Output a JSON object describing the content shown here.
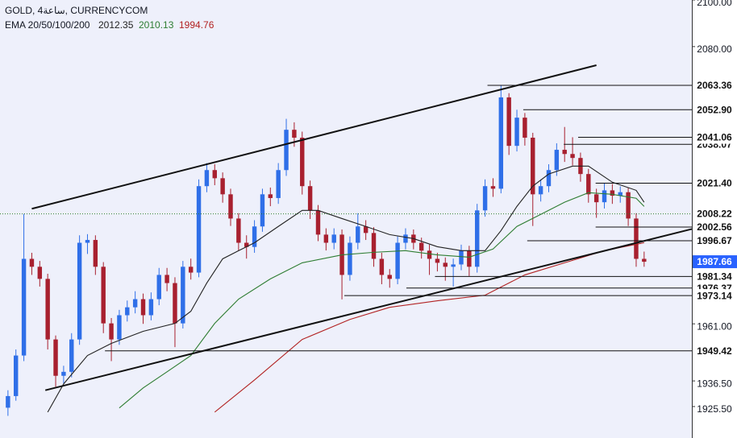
{
  "chart_data": {
    "type": "candlestick",
    "title": "GOLD, 4ساعة, CURRENCYCOM",
    "indicator": "EMA 20/50/100/200",
    "up_color": "#2f6fe8",
    "down_color": "#a8202f",
    "xlim": [
      -1,
      86
    ],
    "ylim": [
      1912,
      2100
    ],
    "yticks": [
      {
        "value": 2100,
        "label": "2100.00"
      },
      {
        "value": 2080,
        "label": "2080.00"
      },
      {
        "value": 1961,
        "label": "1961.00"
      },
      {
        "value": 1936.5,
        "label": "1936.50"
      },
      {
        "value": 1925.5,
        "label": "1925.50"
      }
    ],
    "open": [
      1925.0,
      1930.0,
      1947.4,
      1988.9,
      1985.5,
      1980.3,
      1954.3,
      1938.7,
      1940.4,
      1954.3,
      1995.8,
      1997.0,
      1985.5,
      1961.2,
      1954.3,
      1964.7,
      1968.1,
      1971.6,
      1964.7,
      1971.6,
      1982.0,
      1978.5,
      1961.2,
      1985.5,
      1983.0,
      2020.1,
      2027.0,
      2023.5,
      2016.6,
      2006.2,
      1995.8,
      1994.0,
      2002.8,
      2016.6,
      2015.0,
      2027.0,
      2044.3,
      2040.9,
      2020.1,
      2009.7,
      1999.3,
      1995.8,
      1999.3,
      1982.0,
      1995.8,
      2002.8,
      2000.0,
      1988.9,
      1982.0,
      1980.3,
      1995.8,
      1999.3,
      1995.8,
      1992.4,
      1988.9,
      1987.2,
      1985.5,
      1986.5,
      1992.4,
      1985.5,
      2009.7,
      2020.1,
      2019.0,
      2058.2,
      2037.4,
      2049.5,
      2040.9,
      2016.6,
      2020.1,
      2027.0,
      2035.7,
      2033.9,
      2032.2,
      2025.3,
      2016.6,
      2013.2,
      2018.3,
      2016.0,
      2017.5,
      2006.2,
      1988.9
    ],
    "high": [
      1932.5,
      1950.0,
      2008.2,
      1991.5,
      1988.0,
      1982.5,
      1956.0,
      1943.0,
      1957.0,
      1999.0,
      1999.5,
      1999.0,
      1987.5,
      1963.5,
      1967.0,
      1971.0,
      1975.0,
      1974.0,
      1974.5,
      1985.0,
      1985.0,
      1981.0,
      1988.0,
      1989.0,
      2023.0,
      2030.0,
      2029.5,
      2026.0,
      2019.0,
      2008.5,
      1999.0,
      2005.5,
      2019.0,
      2019.5,
      2030.0,
      2049.0,
      2047.5,
      2043.5,
      2022.5,
      2012.0,
      2002.0,
      2002.0,
      2001.5,
      1998.5,
      2008.5,
      2005.5,
      2002.5,
      1991.5,
      1984.5,
      1998.5,
      2002.0,
      2001.5,
      1998.0,
      1995.0,
      1991.5,
      1989.5,
      1989.0,
      1995.0,
      1994.5,
      2012.5,
      2023.0,
      2023.5,
      2063.4,
      2060.0,
      2052.9,
      2051.5,
      2043.0,
      2023.0,
      2029.5,
      2038.5,
      2045.5,
      2041.1,
      2034.5,
      2027.5,
      2019.0,
      2021.4,
      2021.0,
      2020.0,
      2019.5,
      2008.5,
      1992.0
    ],
    "low": [
      1921.5,
      1928.0,
      1945.0,
      1982.0,
      1977.0,
      1950.0,
      1934.0,
      1935.5,
      1938.0,
      1952.0,
      1991.0,
      1982.0,
      1957.0,
      1945.0,
      1952.0,
      1962.0,
      1965.5,
      1961.0,
      1962.5,
      1969.0,
      1975.0,
      1951.0,
      1959.0,
      1980.0,
      1981.0,
      2017.5,
      2020.5,
      2013.0,
      2003.0,
      1992.5,
      1989.0,
      1991.5,
      2000.5,
      2011.5,
      2012.5,
      2024.5,
      2037.0,
      2016.5,
      2006.0,
      1996.5,
      1992.5,
      1993.0,
      1971.5,
      1979.5,
      1993.0,
      1997.0,
      1985.5,
      1978.0,
      1976.5,
      1978.0,
      1993.0,
      1993.0,
      1989.0,
      1982.0,
      1983.5,
      1979.5,
      1977.0,
      1984.0,
      1981.5,
      1983.0,
      2007.0,
      2015.5,
      2017.0,
      2033.5,
      2035.0,
      2037.5,
      2003.0,
      2013.5,
      2017.5,
      2024.5,
      2030.5,
      2029.0,
      2022.0,
      2013.0,
      2006.5,
      2010.5,
      2012.5,
      2013.0,
      2003.0,
      1985.5,
      1985.5
    ],
    "close": [
      1930.0,
      1947.4,
      1988.9,
      1985.5,
      1980.3,
      1954.3,
      1938.7,
      1940.4,
      1954.3,
      1995.8,
      1997.0,
      1985.5,
      1961.2,
      1954.3,
      1964.7,
      1968.1,
      1971.6,
      1964.7,
      1971.6,
      1982.0,
      1978.5,
      1961.2,
      1985.5,
      1983.0,
      2020.1,
      2027.0,
      2023.5,
      2016.6,
      2006.2,
      1995.8,
      1994.0,
      2002.8,
      2016.6,
      2015.0,
      2027.0,
      2044.3,
      2040.9,
      2020.1,
      2009.7,
      1999.3,
      1995.8,
      1999.3,
      1982.0,
      1995.8,
      2002.8,
      2000.0,
      1988.9,
      1982.0,
      1980.3,
      1995.8,
      1999.3,
      1995.8,
      1992.4,
      1988.9,
      1987.2,
      1985.5,
      1986.5,
      1992.4,
      1985.5,
      2009.7,
      2020.1,
      2019.0,
      2058.2,
      2037.4,
      2049.5,
      2040.9,
      2016.6,
      2020.1,
      2027.0,
      2035.7,
      2033.9,
      2032.2,
      2025.3,
      2016.6,
      2013.2,
      2018.3,
      2016.0,
      2017.5,
      2006.2,
      1988.9,
      1987.66
    ],
    "series": [
      {
        "color": "#222222",
        "last": 2012.35,
        "x": [
          5,
          7,
          10,
          13,
          17,
          21,
          23,
          25,
          27,
          29,
          31,
          34,
          37,
          39,
          42,
          45,
          48,
          51,
          54,
          57,
          60,
          62,
          64,
          66,
          68,
          71,
          73,
          76,
          79,
          80
        ],
        "values": [
          1923.1,
          1935.2,
          1947.4,
          1952.6,
          1957.8,
          1961.2,
          1966.4,
          1978.5,
          1988.9,
          1992.4,
          1995.8,
          2002.8,
          2009.7,
          2009.7,
          2006.2,
          2002.8,
          1999.3,
          1997.6,
          1994.1,
          1992.4,
          1992.4,
          2001.0,
          2011.4,
          2020.1,
          2025.3,
          2028.7,
          2028.7,
          2021.8,
          2018.3,
          2013.2
        ]
      },
      {
        "color": "#2e7d32",
        "last": 2010.13,
        "x": [
          14,
          17,
          20,
          23,
          26,
          29,
          33,
          37,
          42,
          46,
          50,
          54,
          58,
          61,
          64,
          67,
          70,
          73,
          76,
          79,
          80
        ],
        "values": [
          1924.9,
          1933.5,
          1940.4,
          1947.4,
          1961.2,
          1971.6,
          1980.3,
          1987.2,
          1990.6,
          1991.7,
          1992.4,
          1990.6,
          1989.6,
          1993.1,
          2002.8,
          2008.0,
          2013.2,
          2017.3,
          2016.6,
          2014.9,
          2011.4
        ]
      },
      {
        "color": "#b22222",
        "last": 1994.76,
        "x": [
          26,
          31,
          37,
          43,
          48,
          54,
          60,
          65,
          70,
          75,
          80
        ],
        "values": [
          1923.1,
          1936.9,
          1954.3,
          1962.9,
          1968.1,
          1970.9,
          1973.3,
          1982.0,
          1987.2,
          1992.4,
          1995.8
        ]
      }
    ],
    "trendlines": [
      {
        "x": [
          3,
          74
        ],
        "y": [
          2010.4,
          2072.0
        ]
      },
      {
        "x": [
          4.7,
          86
        ],
        "y": [
          1932.5,
          2001.7
        ]
      }
    ],
    "levels": [
      {
        "value": 2063.36,
        "label": "2063.36",
        "from": 60.3
      },
      {
        "value": 2052.9,
        "label": "2052.90",
        "from": 64.8
      },
      {
        "value": 2038.07,
        "label": "2038.07",
        "from": 69.9
      },
      {
        "value": 2041.06,
        "label": "2041.06",
        "from": 71.7
      },
      {
        "value": 2021.4,
        "label": "2021.40",
        "from": 73.9
      },
      {
        "value": 2008.22,
        "label": "2008.22",
        "from": -1,
        "style": "dotted"
      },
      {
        "value": 2002.56,
        "label": "2002.56",
        "from": 73.9
      },
      {
        "value": 1996.67,
        "label": "1996.67",
        "from": 65.3
      },
      {
        "value": 1976.37,
        "label": "1976.37",
        "from": 50.1
      },
      {
        "value": 1981.34,
        "label": "1981.34",
        "from": 53.7
      },
      {
        "value": 1973.14,
        "label": "1973.14",
        "from": 42.3
      },
      {
        "value": 1949.42,
        "label": "1949.42",
        "from": 12.2
      },
      {
        "value": 1987.66,
        "label": "1987.66",
        "current": true
      }
    ]
  }
}
